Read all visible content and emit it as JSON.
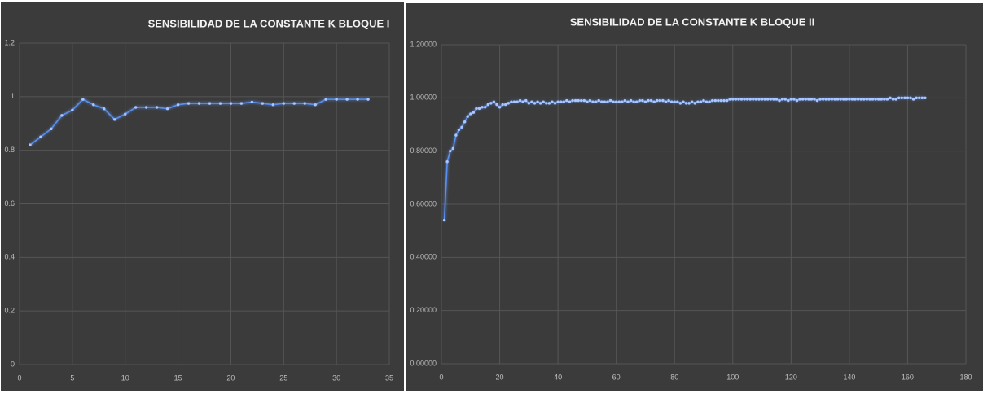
{
  "chart_data": [
    {
      "type": "line",
      "title": "SENSIBILIDAD DE LA CONSTANTE K BLOQUE I",
      "color": "#5a8ff0",
      "grid": true,
      "x": [
        1,
        2,
        3,
        4,
        5,
        6,
        7,
        8,
        9,
        10,
        11,
        12,
        13,
        14,
        15,
        16,
        17,
        18,
        19,
        20,
        21,
        22,
        23,
        24,
        25,
        26,
        27,
        28,
        29,
        30,
        31,
        32,
        33
      ],
      "values": [
        0.82,
        0.85,
        0.88,
        0.93,
        0.95,
        0.99,
        0.97,
        0.955,
        0.915,
        0.935,
        0.96,
        0.96,
        0.96,
        0.955,
        0.97,
        0.975,
        0.975,
        0.975,
        0.975,
        0.975,
        0.975,
        0.98,
        0.975,
        0.97,
        0.975,
        0.975,
        0.975,
        0.97,
        0.99,
        0.99,
        0.99,
        0.99,
        0.99
      ],
      "xlim": [
        0,
        35
      ],
      "xticks": [
        0,
        5,
        10,
        15,
        20,
        25,
        30,
        35
      ],
      "ylim": [
        0,
        1.2
      ],
      "yticks": [
        0,
        0.2,
        0.4,
        0.6,
        0.8,
        1,
        1.2
      ]
    },
    {
      "type": "line",
      "title": "SENSIBILIDAD DE LA CONSTANTE K BLOQUE II",
      "color": "#5a8ff0",
      "grid": true,
      "x": [
        1,
        2,
        3,
        4,
        5,
        6,
        7,
        8,
        9,
        10,
        11,
        12,
        13,
        14,
        15,
        16,
        17,
        18,
        19,
        20,
        21,
        22,
        23,
        24,
        25,
        26,
        27,
        28,
        29,
        30,
        31,
        32,
        33,
        34,
        35,
        36,
        37,
        38,
        39,
        40,
        41,
        42,
        43,
        44,
        45,
        46,
        47,
        48,
        49,
        50,
        51,
        52,
        53,
        54,
        55,
        56,
        57,
        58,
        59,
        60,
        61,
        62,
        63,
        64,
        65,
        66,
        67,
        68,
        69,
        70,
        71,
        72,
        73,
        74,
        75,
        76,
        77,
        78,
        79,
        80,
        81,
        82,
        83,
        84,
        85,
        86,
        87,
        88,
        89,
        90,
        91,
        92,
        93,
        94,
        95,
        96,
        97,
        98,
        99,
        100,
        101,
        102,
        103,
        104,
        105,
        106,
        107,
        108,
        109,
        110,
        111,
        112,
        113,
        114,
        115,
        116,
        117,
        118,
        119,
        120,
        121,
        122,
        123,
        124,
        125,
        126,
        127,
        128,
        129,
        130,
        131,
        132,
        133,
        134,
        135,
        136,
        137,
        138,
        139,
        140,
        141,
        142,
        143,
        144,
        145,
        146,
        147,
        148,
        149,
        150,
        151,
        152,
        153,
        154,
        155,
        156,
        157,
        158,
        159,
        160,
        161,
        162,
        163,
        164,
        165,
        166
      ],
      "values": [
        0.54,
        0.76,
        0.8,
        0.81,
        0.86,
        0.88,
        0.89,
        0.91,
        0.93,
        0.94,
        0.945,
        0.96,
        0.96,
        0.965,
        0.965,
        0.975,
        0.98,
        0.985,
        0.975,
        0.965,
        0.975,
        0.975,
        0.98,
        0.985,
        0.985,
        0.985,
        0.99,
        0.985,
        0.99,
        0.98,
        0.985,
        0.98,
        0.985,
        0.98,
        0.985,
        0.98,
        0.98,
        0.985,
        0.98,
        0.985,
        0.985,
        0.985,
        0.99,
        0.985,
        0.99,
        0.99,
        0.99,
        0.99,
        0.99,
        0.985,
        0.99,
        0.985,
        0.985,
        0.99,
        0.985,
        0.985,
        0.985,
        0.99,
        0.985,
        0.985,
        0.985,
        0.985,
        0.99,
        0.985,
        0.99,
        0.985,
        0.985,
        0.99,
        0.99,
        0.985,
        0.99,
        0.99,
        0.985,
        0.99,
        0.99,
        0.99,
        0.985,
        0.99,
        0.985,
        0.985,
        0.985,
        0.98,
        0.985,
        0.98,
        0.98,
        0.985,
        0.98,
        0.985,
        0.985,
        0.99,
        0.985,
        0.985,
        0.99,
        0.99,
        0.99,
        0.99,
        0.99,
        0.99,
        0.995,
        0.995,
        0.995,
        0.995,
        0.995,
        0.995,
        0.995,
        0.995,
        0.995,
        0.995,
        0.995,
        0.995,
        0.995,
        0.995,
        0.995,
        0.995,
        0.995,
        0.99,
        0.995,
        0.995,
        0.99,
        0.995,
        0.995,
        0.99,
        0.995,
        0.995,
        0.995,
        0.995,
        0.995,
        0.995,
        0.99,
        0.995,
        0.995,
        0.995,
        0.995,
        0.995,
        0.995,
        0.995,
        0.995,
        0.995,
        0.995,
        0.995,
        0.995,
        0.995,
        0.995,
        0.995,
        0.995,
        0.995,
        0.995,
        0.995,
        0.995,
        0.995,
        0.995,
        0.995,
        0.995,
        1.0,
        0.995,
        0.995,
        1.0,
        1.0,
        1.0,
        1.0,
        1.0,
        0.995,
        1.0,
        1.0,
        1.0,
        1.0
      ],
      "xlim": [
        0,
        180
      ],
      "xticks": [
        0,
        20,
        40,
        60,
        80,
        100,
        120,
        140,
        160,
        180
      ],
      "ylim": [
        0,
        1.2
      ],
      "yticks": [
        {
          "value": 0,
          "label": "0.00000"
        },
        {
          "value": 0.2,
          "label": "0.20000"
        },
        {
          "value": 0.4,
          "label": "0.40000"
        },
        {
          "value": 0.6,
          "label": "0.60000"
        },
        {
          "value": 0.8,
          "label": "0.80000"
        },
        {
          "value": 1,
          "label": "1.00000"
        },
        {
          "value": 1.2,
          "label": "1.20000"
        }
      ]
    }
  ]
}
